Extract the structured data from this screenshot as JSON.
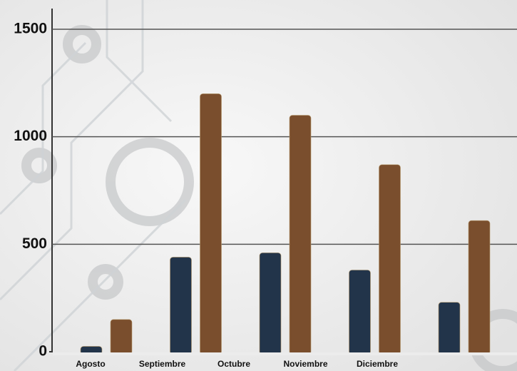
{
  "chart_data": {
    "type": "bar",
    "categories": [
      "Agosto",
      "Septiembre",
      "Octubre",
      "Noviembre",
      "Diciembre"
    ],
    "series": [
      {
        "color": "#22344a",
        "values": [
          25,
          440,
          460,
          380,
          230
        ]
      },
      {
        "color": "#7a4e2d",
        "values": [
          150,
          1200,
          1100,
          870,
          610
        ]
      }
    ],
    "ylim": [
      0,
      1500
    ],
    "yticks": [
      0,
      500,
      1000,
      1500
    ],
    "grid": true
  }
}
